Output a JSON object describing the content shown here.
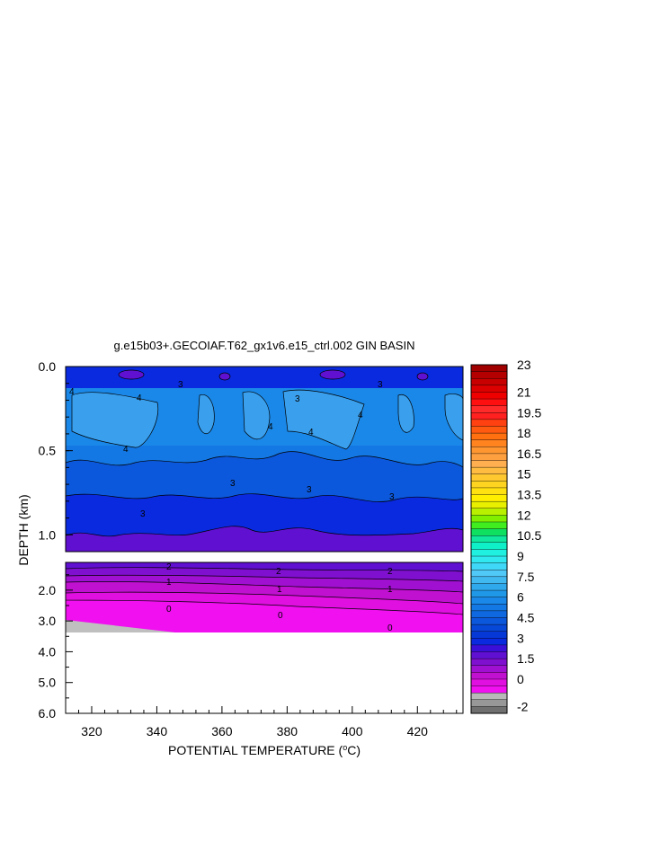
{
  "chart_data": {
    "type": "heatmap",
    "title": "g.e15b03+.GECOIAF.T62_gx1v6.e15_ctrl.002 GIN BASIN",
    "xlabel": "POTENTIAL TEMPERATURE (",
    "xlabel_sup": "o",
    "xlabel_unit": "C)",
    "ylabel": "DEPTH (km)",
    "x_ticks": [
      "320",
      "340",
      "360",
      "380",
      "400",
      "420"
    ],
    "x_tick_values": [
      320,
      340,
      360,
      380,
      400,
      420
    ],
    "xlim": [
      312,
      434
    ],
    "upper_panel": {
      "ylim": [
        0.0,
        1.1
      ],
      "y_ticks": [
        "0.0",
        "0.5",
        "1.0"
      ],
      "y_tick_values": [
        0.0,
        0.5,
        1.0
      ],
      "contour_labels": [
        "4",
        "4",
        "3",
        "4",
        "4",
        "3",
        "4",
        "4",
        "3",
        "3",
        "3",
        "3",
        "3"
      ]
    },
    "lower_panel": {
      "ylim": [
        1.1,
        6.0
      ],
      "y_ticks": [
        "2.0",
        "3.0",
        "4.0",
        "5.0",
        "6.0"
      ],
      "y_tick_values": [
        2.0,
        3.0,
        4.0,
        5.0,
        6.0
      ],
      "data_bottom_depth": 3.4,
      "contour_labels": [
        "2",
        "2",
        "2",
        "1",
        "1",
        "1",
        "0",
        "0",
        "0"
      ]
    },
    "colorbar": {
      "labels": [
        "23",
        "21",
        "19.5",
        "18",
        "16.5",
        "15",
        "13.5",
        "12",
        "10.5",
        "9",
        "7.5",
        "6",
        "4.5",
        "3",
        "1.5",
        "0",
        "-2"
      ],
      "levels_top_to_bottom": [
        23,
        22.5,
        22,
        21.5,
        21,
        20.5,
        20,
        19.5,
        19,
        18.5,
        18,
        17.5,
        17,
        16.5,
        16,
        15.5,
        15,
        14.5,
        14,
        13.5,
        13,
        12.5,
        12,
        11.5,
        11,
        10.5,
        10,
        9.5,
        9,
        8.5,
        8,
        7.5,
        7,
        6.5,
        6,
        5.5,
        5,
        4.5,
        4,
        3.5,
        3,
        2.5,
        2,
        1.5,
        1,
        0.5,
        0,
        -0.5,
        -1,
        -1.5,
        -2
      ],
      "colors_top_to_bottom": [
        "#a00000",
        "#b40000",
        "#c80000",
        "#dc0000",
        "#ee0000",
        "#ff1010",
        "#ff2a2a",
        "#ff2020",
        "#ff4010",
        "#ff5a10",
        "#ff7010",
        "#ff8420",
        "#ff9630",
        "#ffa040",
        "#ffae50",
        "#ffbc40",
        "#ffc830",
        "#ffd420",
        "#ffe010",
        "#ffee00",
        "#e8f000",
        "#b8f000",
        "#80f000",
        "#40ee20",
        "#10e060",
        "#10e8a0",
        "#10f0c8",
        "#20f0e0",
        "#30e8f0",
        "#40d8f8",
        "#50c8f8",
        "#40b8f0",
        "#30a8ec",
        "#2098e8",
        "#1a88e8",
        "#1478e4",
        "#1068e0",
        "#0c58dc",
        "#0848d8",
        "#0638d8",
        "#0a2ae0",
        "#3a10d8",
        "#6010d0",
        "#8010d0",
        "#a010d0",
        "#c010d0",
        "#e010e0",
        "#f010f0",
        "#b8b8b8",
        "#989898",
        "#707070"
      ]
    }
  }
}
